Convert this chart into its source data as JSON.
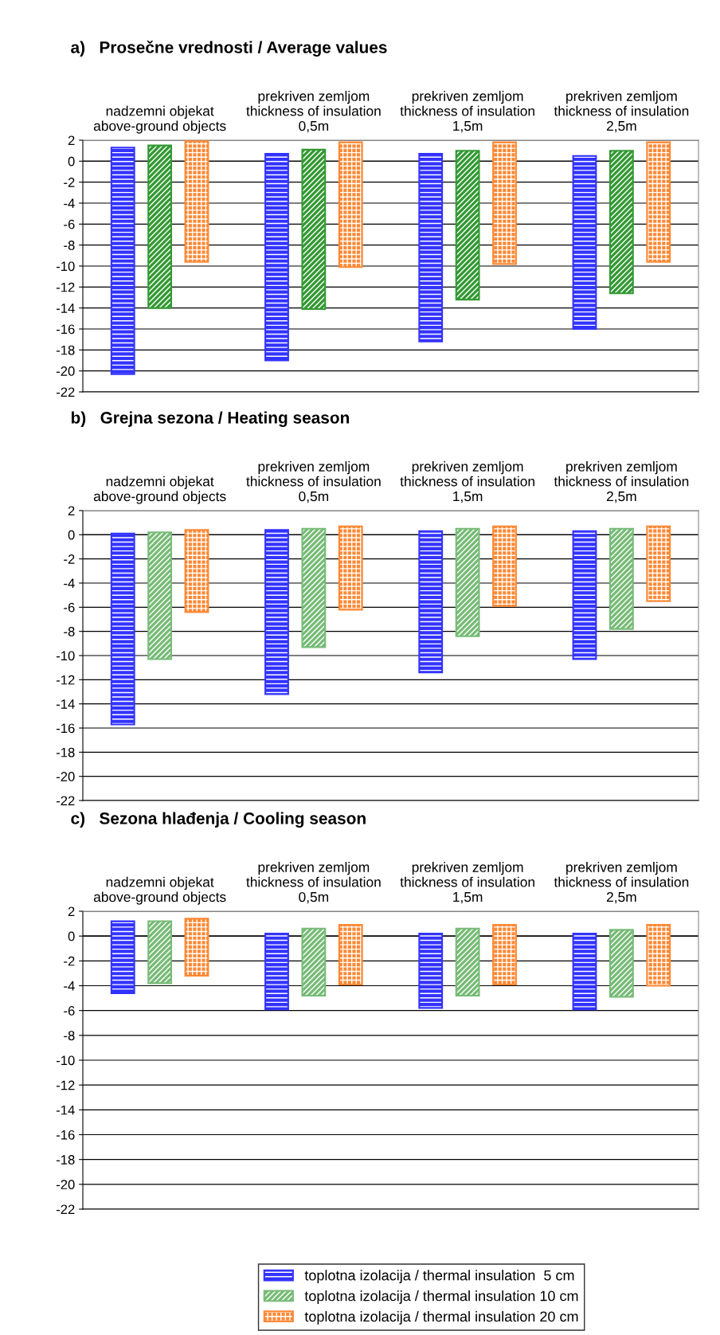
{
  "chart_data": [
    {
      "type": "bar",
      "title": "a)   Prosečne vrednosti / Average values",
      "categories": [
        "nadzemni objekat\nabove-ground objects",
        "prekriven zemljom\nthickness of insulation\n0,5m",
        "prekriven zemljom\nthickness of insulation\n1,5m",
        "prekriven zemljom\nthickness of insulation\n2,5m"
      ],
      "ylim": [
        -22,
        2
      ],
      "yticks": [
        -22,
        -20,
        -18,
        -16,
        -14,
        -12,
        -10,
        -8,
        -6,
        -4,
        -2,
        0,
        2
      ],
      "grid": "y",
      "legend": false,
      "series": [
        {
          "color": "#3333ff",
          "values": [
            21.6,
            19.7,
            17.9,
            16.5
          ],
          "base": [
            -20.3,
            -19.0,
            -17.2,
            -16.0
          ]
        },
        {
          "color": "#339933",
          "values": [
            15.5,
            15.2,
            14.2,
            13.6
          ],
          "base": [
            -14.0,
            -14.1,
            -13.2,
            -12.6
          ]
        },
        {
          "color": "#ff8833",
          "values": [
            11.5,
            11.9,
            11.6,
            11.4
          ],
          "base": [
            -9.6,
            -10.1,
            -9.8,
            -9.6
          ]
        }
      ]
    },
    {
      "type": "bar",
      "title": "b)   Grejna sezona / Heating season",
      "categories": [
        "nadzemni objekat\nabove-ground objects",
        "prekriven zemljom\nthickness of insulation\n0,5m",
        "prekriven zemljom\nthickness of insulation\n1,5m",
        "prekriven zemljom\nthickness of insulation\n2,5m"
      ],
      "ylim": [
        -22,
        2
      ],
      "yticks": [
        -22,
        -20,
        -18,
        -16,
        -14,
        -12,
        -10,
        -8,
        -6,
        -4,
        -2,
        0,
        2
      ],
      "grid": "y",
      "legend": false,
      "series": [
        {
          "color": "#3333ff",
          "values": [
            15.8,
            13.6,
            11.7,
            10.6
          ],
          "base": [
            -15.7,
            -13.2,
            -11.4,
            -10.3
          ]
        },
        {
          "color": "#77bb77",
          "values": [
            10.5,
            9.8,
            8.9,
            8.3
          ],
          "base": [
            -10.3,
            -9.3,
            -8.4,
            -7.8
          ]
        },
        {
          "color": "#ff8833",
          "values": [
            6.8,
            6.9,
            6.6,
            6.2
          ],
          "base": [
            -6.4,
            -6.2,
            -5.9,
            -5.5
          ]
        }
      ]
    },
    {
      "type": "bar",
      "title": "c)   Sezona hlađenja / Cooling season",
      "categories": [
        "nadzemni objekat\nabove-ground objects",
        "prekriven zemljom\nthickness of insulation\n0,5m",
        "prekriven zemljom\nthickness of insulation\n1,5m",
        "prekriven zemljom\nthickness of insulation\n2,5m"
      ],
      "ylim": [
        -22,
        2
      ],
      "yticks": [
        -22,
        -20,
        -18,
        -16,
        -14,
        -12,
        -10,
        -8,
        -6,
        -4,
        -2,
        0,
        2
      ],
      "grid": "y",
      "legend": "bottom",
      "series": [
        {
          "name": "toplotna izolacija / thermal insulation  5 cm",
          "color": "#3333ff",
          "values": [
            5.8,
            6.1,
            6.0,
            6.1
          ],
          "base": [
            -4.6,
            -5.9,
            -5.8,
            -5.9
          ]
        },
        {
          "name": "toplotna izolacija / thermal insulation 10 cm",
          "color": "#77bb77",
          "values": [
            5.0,
            5.4,
            5.4,
            5.4
          ],
          "base": [
            -3.8,
            -4.8,
            -4.8,
            -4.9
          ]
        },
        {
          "name": "toplotna izolacija / thermal insulation 20 cm",
          "color": "#ff8833",
          "values": [
            4.6,
            4.8,
            4.8,
            4.9
          ],
          "base": [
            -3.2,
            -3.9,
            -3.9,
            -4.0
          ]
        }
      ]
    }
  ]
}
